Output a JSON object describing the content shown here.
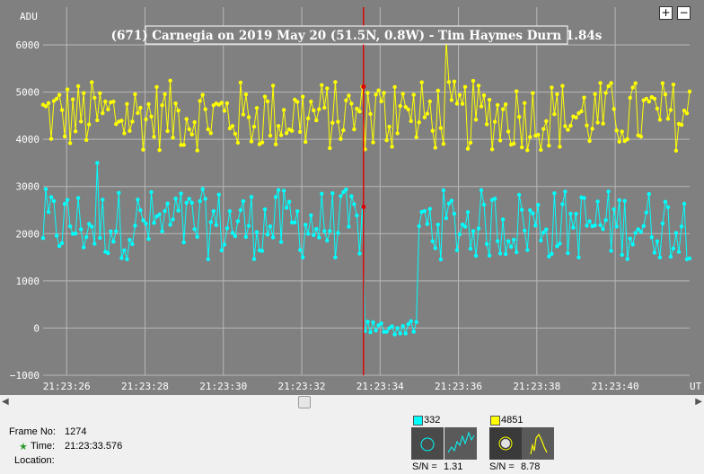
{
  "chart_data": {
    "type": "line",
    "title": "(671) Carnegia on 2019 May 20 (51.5N, 0.8W) - Tim Haymes Durn 1.84s",
    "ylabel": "ADU",
    "xlabel": "UT",
    "ylim": [
      -1000,
      6800
    ],
    "yticks": [
      "6000",
      "5000",
      "4000",
      "3000",
      "2000",
      "1000",
      "0",
      "−1000"
    ],
    "yticks_values": [
      6000,
      5000,
      4000,
      3000,
      2000,
      1000,
      0,
      -1000
    ],
    "xticks": [
      "21:23:26",
      "21:23:28",
      "21:23:30",
      "21:23:32",
      "21:23:34",
      "21:23:36",
      "21:23:38",
      "21:23:40"
    ],
    "xticks_values": [
      26,
      28,
      30,
      32,
      34,
      36,
      38,
      40
    ],
    "xlim": [
      25.4,
      41.9
    ],
    "cursor_x": 33.576,
    "grid": true,
    "background": "#808080",
    "series": [
      {
        "name": "4851",
        "color": "#ffff00",
        "values": []
      },
      {
        "name": "332",
        "color": "#00ffff",
        "values": []
      }
    ]
  },
  "zoom": {
    "plus": "+",
    "minus": "−"
  },
  "info": {
    "frame_label": "Frame No:",
    "frame_value": "1274",
    "time_label": "Time:",
    "time_value": "21:23:33.576",
    "location_label": "Location:",
    "star_glyph": "★"
  },
  "panels": [
    {
      "value": "332",
      "color": "#00ffff",
      "sn_label": "S/N =",
      "sn_value": "1.31"
    },
    {
      "value": "4851",
      "color": "#ffff00",
      "sn_label": "S/N =",
      "sn_value": "8.78"
    }
  ]
}
